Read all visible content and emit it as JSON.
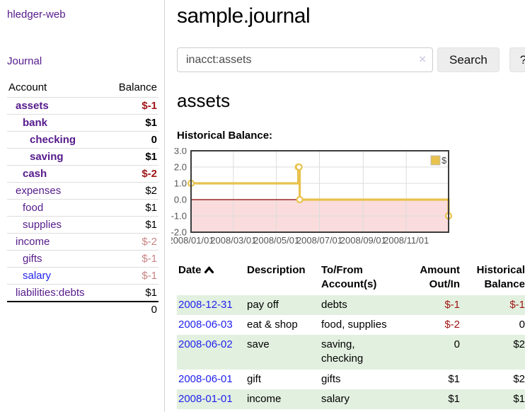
{
  "colors": {
    "link_purple": "#551A8B",
    "link_blue": "#2222EE",
    "negative_red": "#A01616",
    "negative_muted_red": "#CA8383",
    "row_stripe_green": "#E2F0DF",
    "chart_line_yellow": "#E8C24D",
    "chart_negative_fill_pink": "#FADCDC",
    "chart_zero_line_red": "#8B0000",
    "chart_grid_gray": "#DCDCDC",
    "chart_border_gray": "#3C3C3C",
    "axis_label_gray": "#545454"
  },
  "sidebar": {
    "app_title": "hledger-web",
    "nav_journal": "Journal",
    "table": {
      "account_header": "Account",
      "balance_header": "Balance",
      "accounts": [
        {
          "label": "assets",
          "balance": "$-1",
          "indent": 0,
          "emphasis": true,
          "label_color": "purple",
          "balance_color": "negative"
        },
        {
          "label": "bank",
          "balance": "$1",
          "indent": 1,
          "emphasis": true,
          "label_color": "purple",
          "balance_color": "normal"
        },
        {
          "label": "checking",
          "balance": "0",
          "indent": 2,
          "emphasis": true,
          "label_color": "purple",
          "balance_color": "normal"
        },
        {
          "label": "saving",
          "balance": "$1",
          "indent": 2,
          "emphasis": true,
          "label_color": "purple",
          "balance_color": "normal"
        },
        {
          "label": "cash",
          "balance": "$-2",
          "indent": 1,
          "emphasis": true,
          "label_color": "purple",
          "balance_color": "negative"
        },
        {
          "label": "expenses",
          "balance": "$2",
          "indent": 0,
          "emphasis": false,
          "label_color": "purple",
          "balance_color": "normal"
        },
        {
          "label": "food",
          "balance": "$1",
          "indent": 1,
          "emphasis": false,
          "label_color": "purple",
          "balance_color": "normal"
        },
        {
          "label": "supplies",
          "balance": "$1",
          "indent": 1,
          "emphasis": false,
          "label_color": "purple",
          "balance_color": "normal"
        },
        {
          "label": "income",
          "balance": "$-2",
          "indent": 0,
          "emphasis": false,
          "label_color": "purple",
          "balance_color": "negative-muted"
        },
        {
          "label": "gifts",
          "balance": "$-1",
          "indent": 1,
          "emphasis": false,
          "label_color": "purple",
          "balance_color": "negative-muted"
        },
        {
          "label": "salary",
          "balance": "$-1",
          "indent": 1,
          "emphasis": false,
          "label_color": "blue",
          "balance_color": "negative-muted"
        },
        {
          "label": "liabilities:debts",
          "balance": "$1",
          "indent": 0,
          "emphasis": false,
          "label_color": "purple",
          "balance_color": "normal"
        }
      ],
      "total": "0"
    }
  },
  "main": {
    "title": "sample.journal",
    "search": {
      "value": "inacct:assets",
      "clear_icon": "×",
      "button_label": "Search",
      "help_label": "?"
    },
    "account_heading": "assets",
    "chart_heading": "Historical Balance:",
    "register": {
      "headers": {
        "date": "Date",
        "description": "Description",
        "tofrom": "To/From Account(s)",
        "amount": "Amount Out/In",
        "historical": "Historical Balance"
      },
      "sort_icon": "chevron-up",
      "rows": [
        {
          "date": "2008-12-31",
          "description": "pay off",
          "accounts": "debts",
          "amount": "$-1",
          "amount_negative": true,
          "balance": "$-1",
          "balance_negative": true
        },
        {
          "date": "2008-06-03",
          "description": "eat & shop",
          "accounts": "food, supplies",
          "amount": "$-2",
          "amount_negative": true,
          "balance": "0",
          "balance_negative": false
        },
        {
          "date": "2008-06-02",
          "description": "save",
          "accounts": "saving,\nchecking",
          "amount": "0",
          "amount_negative": false,
          "balance": "$2",
          "balance_negative": false
        },
        {
          "date": "2008-06-01",
          "description": "gift",
          "accounts": "gifts",
          "amount": "$1",
          "amount_negative": false,
          "balance": "$2",
          "balance_negative": false
        },
        {
          "date": "2008-01-01",
          "description": "income",
          "accounts": "salary",
          "amount": "$1",
          "amount_negative": false,
          "balance": "$1",
          "balance_negative": false
        }
      ]
    }
  },
  "chart_data": {
    "type": "line",
    "step": true,
    "title": "Historical Balance",
    "legend": "$",
    "legend_position": "top-right",
    "grid": true,
    "xrange": [
      "2008-01-01",
      "2008-12-31"
    ],
    "ylim": [
      -2.0,
      3.0
    ],
    "yticks": [
      "3.0",
      "2.0",
      "1.0",
      "0.0",
      "-1.0",
      "-2.0"
    ],
    "ytick_values": [
      3,
      2,
      1,
      0,
      -1,
      -2
    ],
    "xticks": [
      "2008/01/01",
      "2008/03/01",
      "2008/05/01",
      "2008/07/01",
      "2008/09/01",
      "2008/11/01"
    ],
    "xtick_dates": [
      "2008-01-01",
      "2008-03-01",
      "2008-05-01",
      "2008-07-01",
      "2008-09-01",
      "2008-11-01"
    ],
    "series": [
      {
        "name": "$",
        "points": [
          [
            "2008-01-01",
            1
          ],
          [
            "2008-06-01",
            2
          ],
          [
            "2008-06-02",
            2
          ],
          [
            "2008-06-03",
            0
          ],
          [
            "2008-12-31",
            -1
          ]
        ]
      }
    ],
    "negative_region_shaded": true
  }
}
